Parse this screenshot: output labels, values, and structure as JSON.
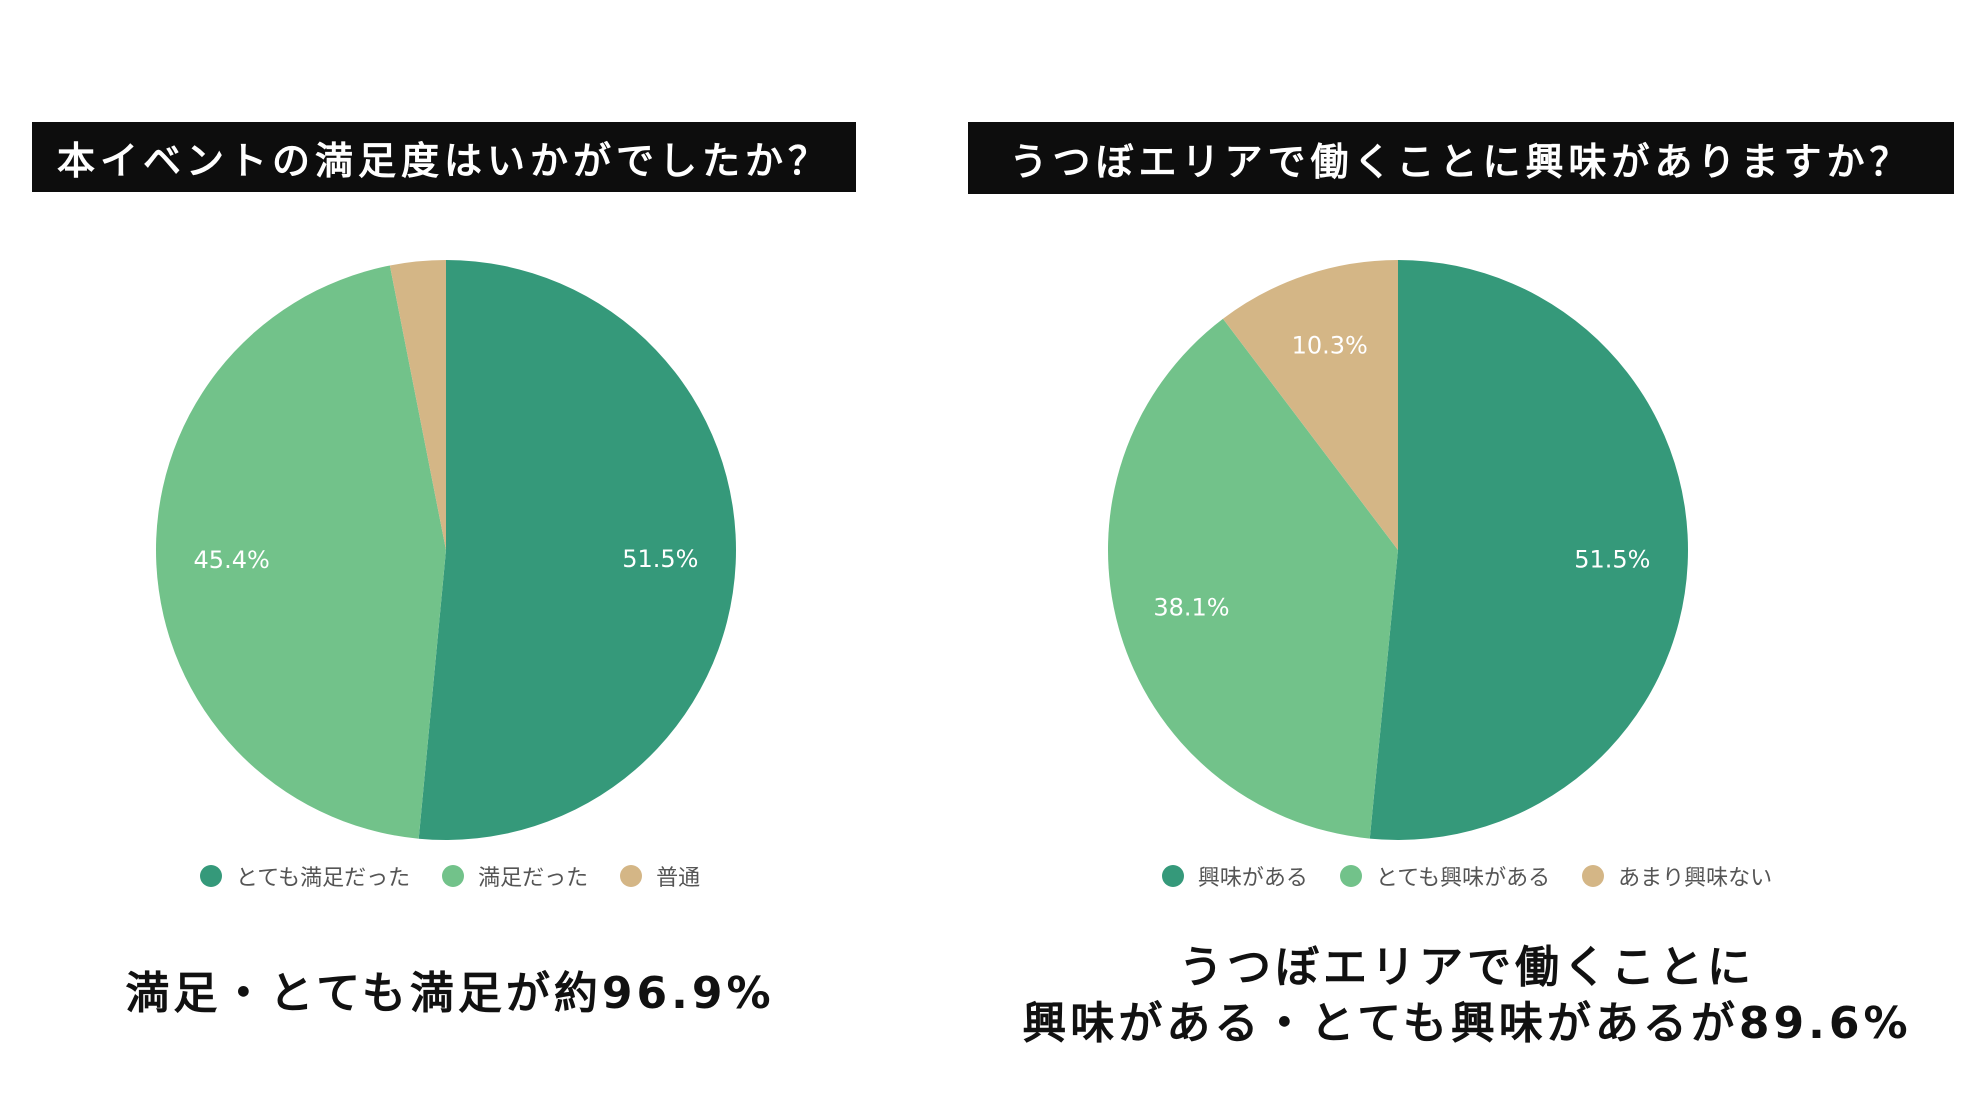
{
  "charts": {
    "left": {
      "title": "本イベントの満足度はいかがでしたか？",
      "summary_lines": [
        "満足・とても満足が約96.9%"
      ]
    },
    "right": {
      "title": "うつぼエリアで働くことに興味がありますか？",
      "summary_lines": [
        "うつぼエリアで働くことに",
        "興味がある・とても興味があるが89.6%"
      ]
    }
  },
  "colors": {
    "dark_green": "#35997a",
    "light_green": "#72c28a",
    "tan": "#d4b686"
  },
  "chart_data": [
    {
      "type": "pie",
      "title": "本イベントの満足度はいかがでしたか？",
      "legend_position": "bottom",
      "series": [
        {
          "name": "とても満足だった",
          "value": 51.5,
          "label": "51.5%",
          "color": "#35997a"
        },
        {
          "name": "満足だった",
          "value": 45.4,
          "label": "45.4%",
          "color": "#72c28a"
        },
        {
          "name": "普通",
          "value": 3.1,
          "label": "",
          "color": "#d4b686"
        }
      ]
    },
    {
      "type": "pie",
      "title": "うつぼエリアで働くことに興味がありますか？",
      "legend_position": "bottom",
      "series": [
        {
          "name": "興味がある",
          "value": 51.5,
          "label": "51.5%",
          "color": "#35997a"
        },
        {
          "name": "とても興味がある",
          "value": 38.1,
          "label": "38.1%",
          "color": "#72c28a"
        },
        {
          "name": "あまり興味ない",
          "value": 10.3,
          "label": "10.3%",
          "color": "#d4b686"
        }
      ]
    }
  ]
}
